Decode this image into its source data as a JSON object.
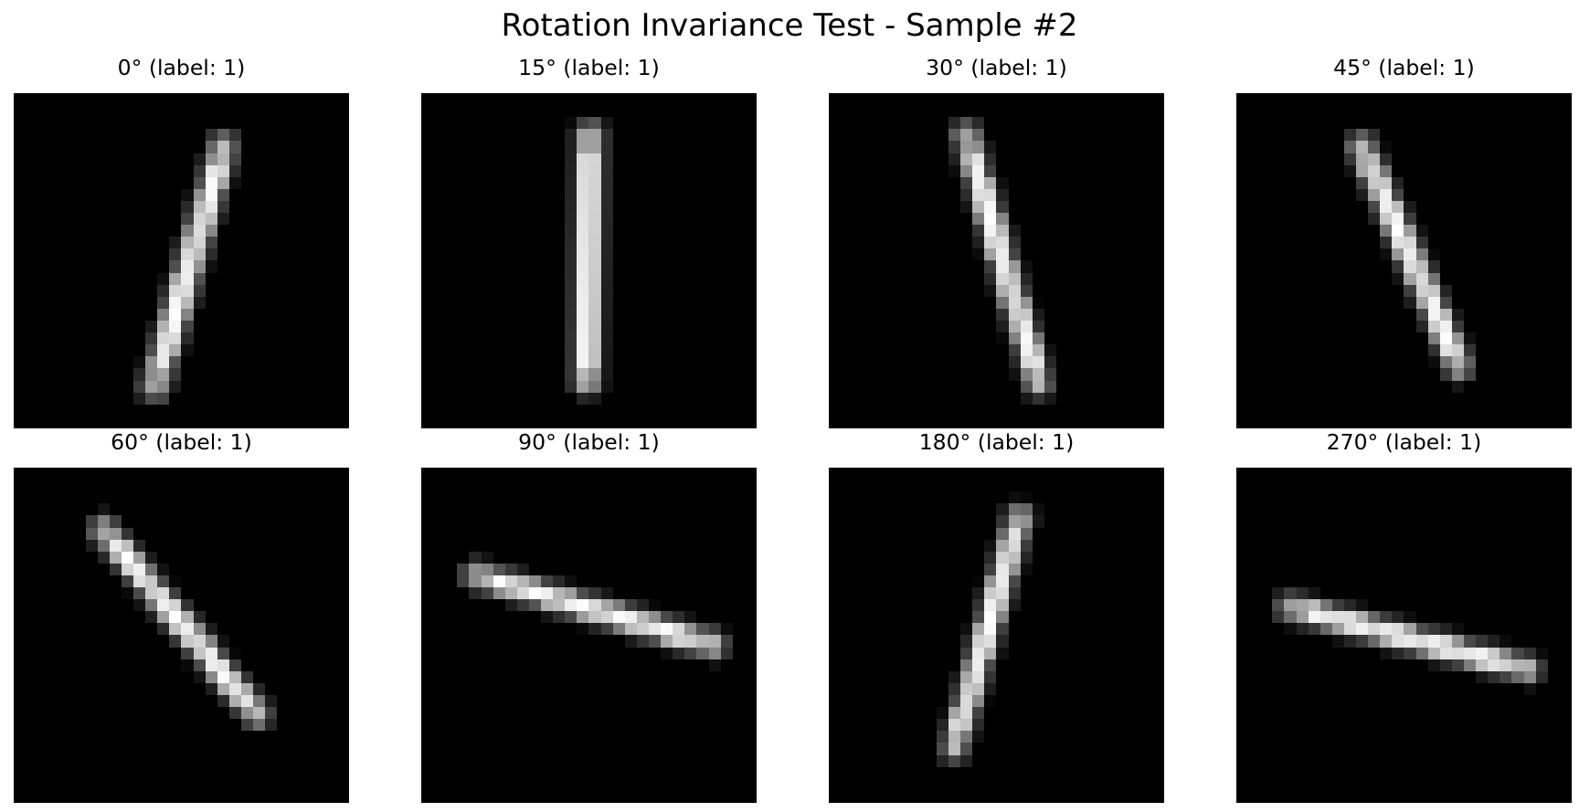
{
  "title": "Rotation Invariance Test - Sample #2",
  "panels": [
    {
      "title": "0° (label: 1)",
      "angle": 0,
      "label": 1
    },
    {
      "title": "15° (label: 1)",
      "angle": 15,
      "label": 1
    },
    {
      "title": "30° (label: 1)",
      "angle": 30,
      "label": 1
    },
    {
      "title": "45° (label: 1)",
      "angle": 45,
      "label": 1
    },
    {
      "title": "60° (label: 1)",
      "angle": 60,
      "label": 1
    },
    {
      "title": "90° (label: 1)",
      "angle": 90,
      "label": 1
    },
    {
      "title": "180° (label: 1)",
      "angle": 180,
      "label": 1
    },
    {
      "title": "270° (label: 1)",
      "angle": 270,
      "label": 1
    }
  ],
  "colors": {
    "background": "#ffffff",
    "image_background": "#000000",
    "stroke": "#ffffff"
  }
}
